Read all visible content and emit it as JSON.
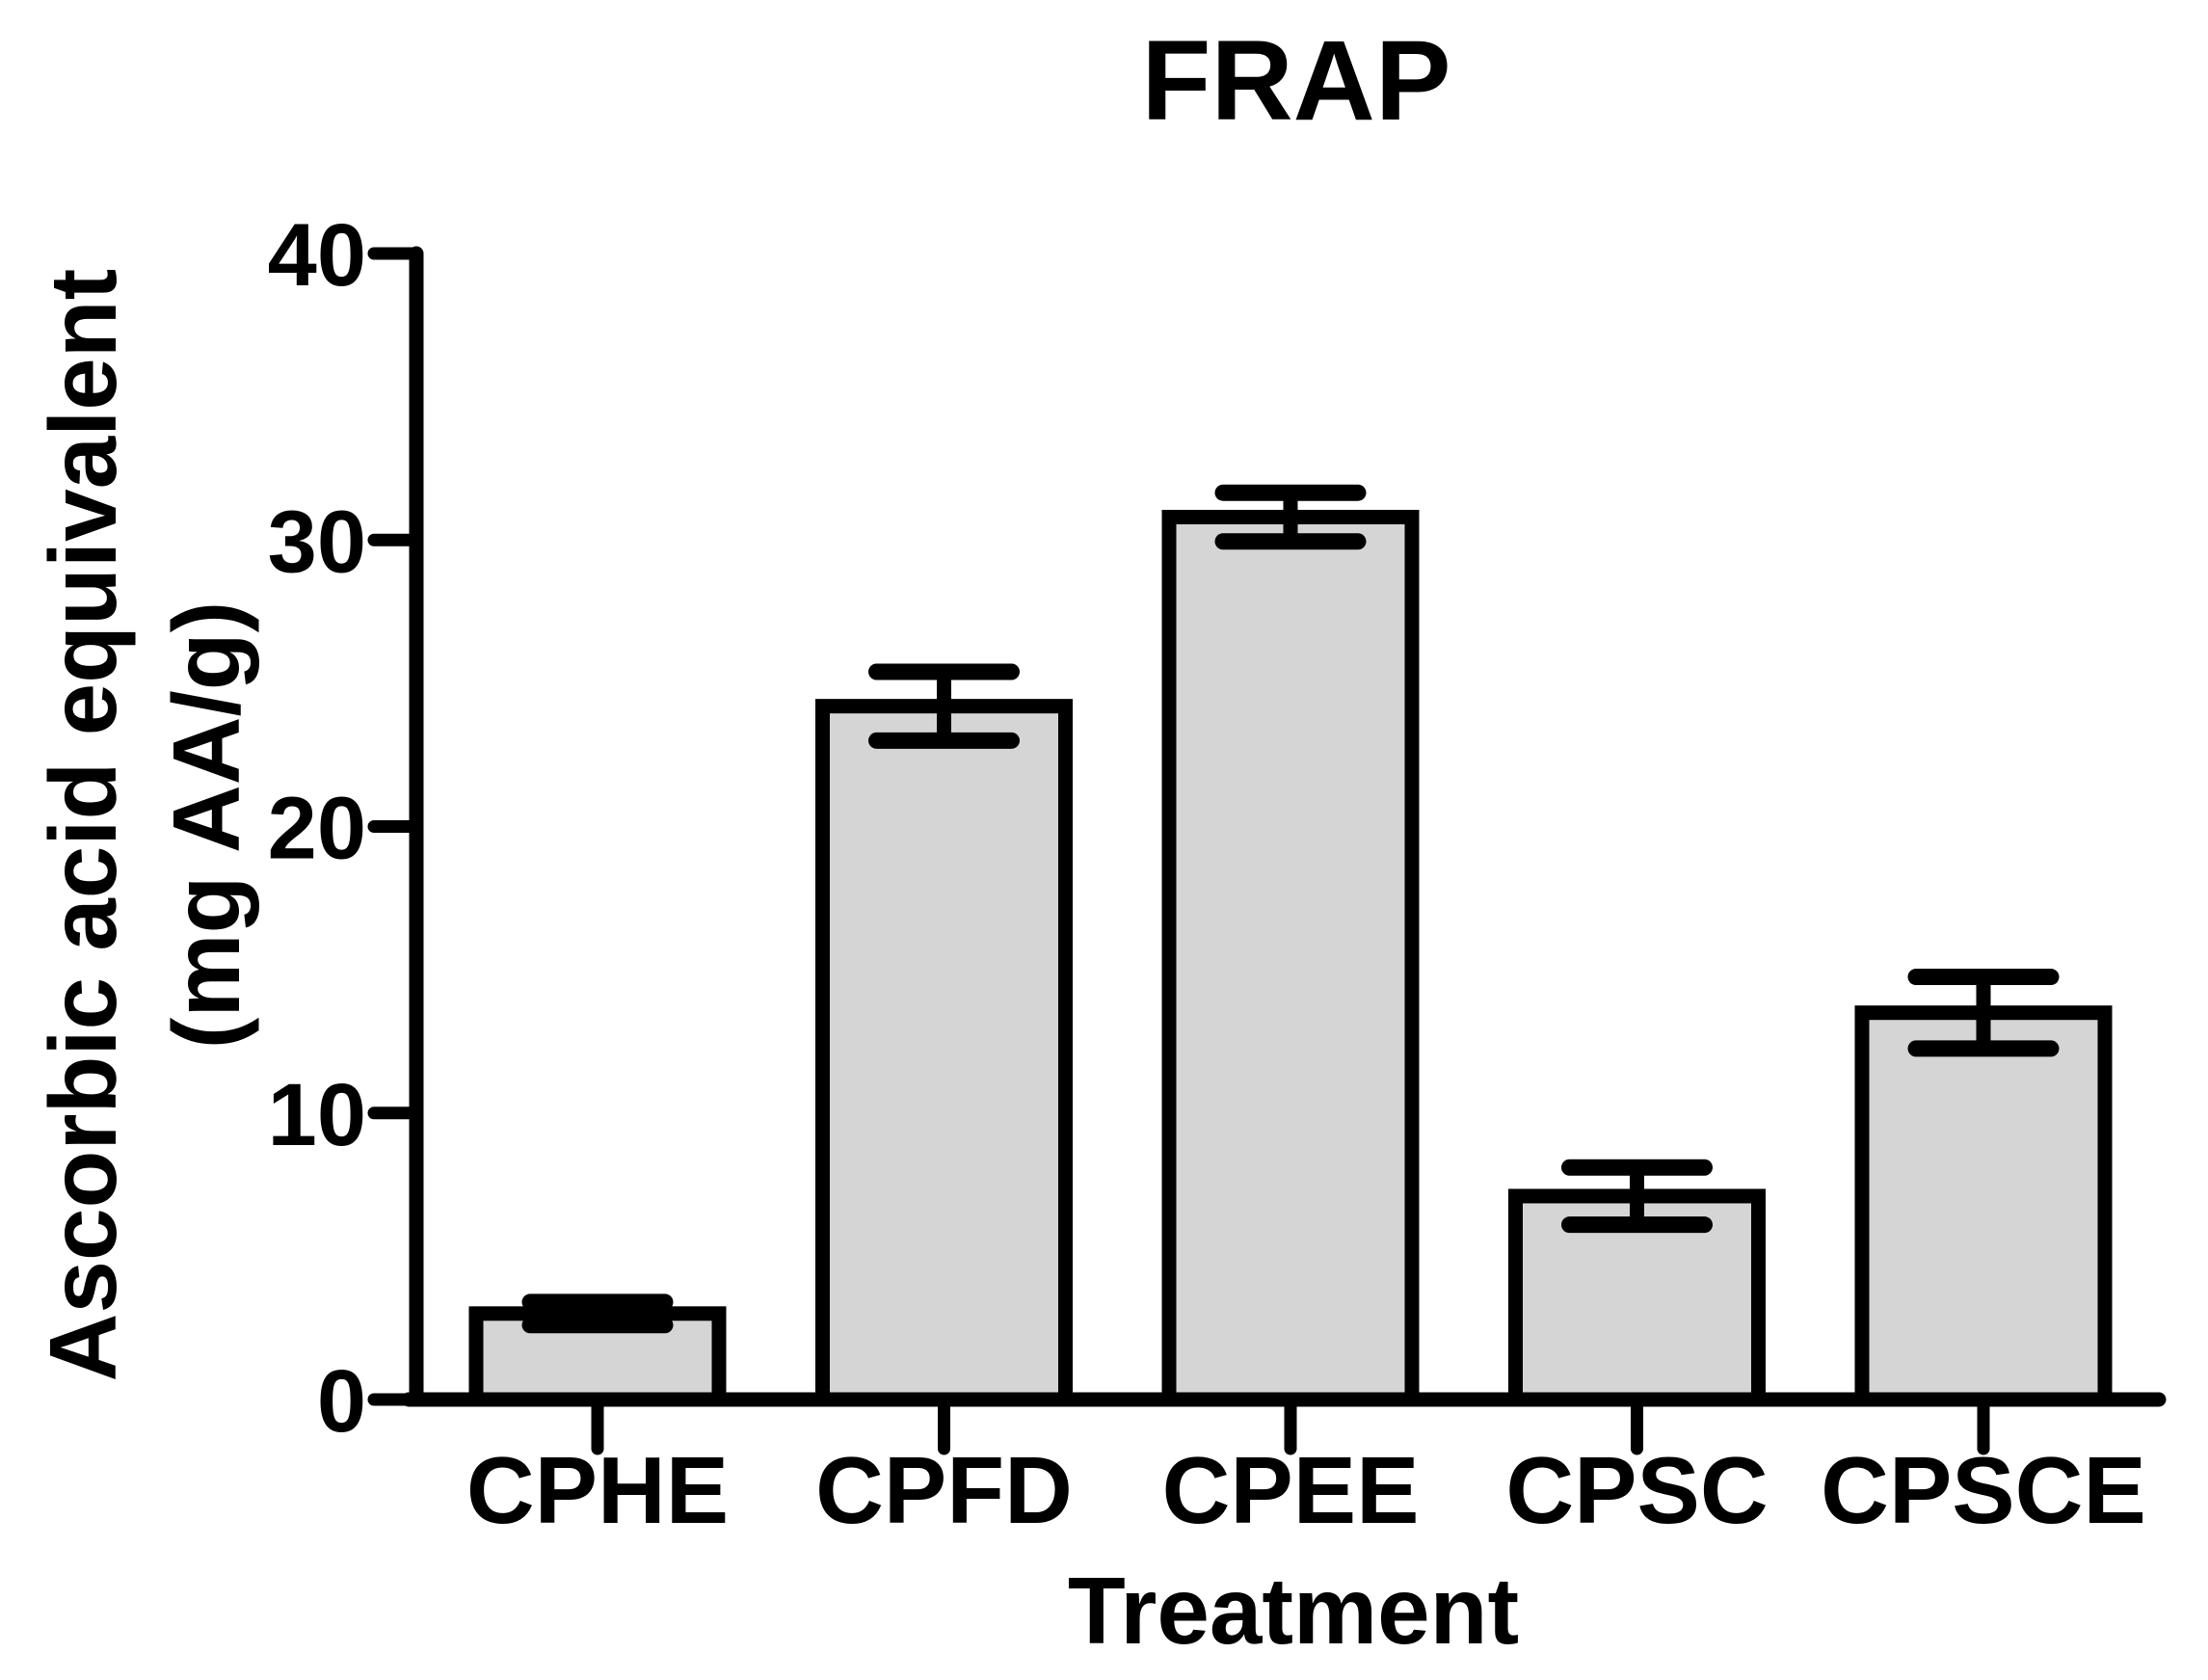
{
  "figure": {
    "background_color": "#ffffff"
  },
  "chart_data": {
    "type": "bar",
    "title": "FRAP",
    "xlabel": "Treatment",
    "ylabel": "Ascorbic acid equivalent (mg AA/g)",
    "ylabel_lines": [
      "Ascorbic acid equivalent",
      "(mg AA/g)"
    ],
    "categories": [
      "CPHE",
      "CPFD",
      "CPEE",
      "CPSC",
      "CPSCE"
    ],
    "values": [
      3.0,
      24.2,
      30.8,
      7.1,
      13.5
    ],
    "errors": [
      0.4,
      1.2,
      0.85,
      1.0,
      1.25
    ],
    "error_bar_style": "both directions, capped",
    "ylim": [
      0,
      40
    ],
    "yticks": [
      0,
      10,
      20,
      30,
      40
    ],
    "grid": false,
    "legend": false,
    "bar_fill_color": "#d5d5d5",
    "bar_border_color": "#000000",
    "axis_color": "#000000",
    "text_color": "#000000"
  }
}
